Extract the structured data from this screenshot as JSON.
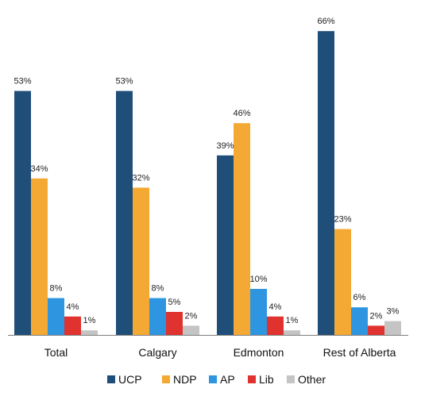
{
  "chart_data": {
    "type": "bar",
    "categories": [
      "Total",
      "Calgary",
      "Edmonton",
      "Rest of Alberta"
    ],
    "series": [
      {
        "name": "UCP",
        "values": [
          53,
          53,
          39,
          66
        ],
        "labels": [
          "53%",
          "53%",
          "39%",
          "66%"
        ],
        "color": "#1f4e79"
      },
      {
        "name": "NDP",
        "values": [
          34,
          32,
          46,
          23
        ],
        "labels": [
          "34%",
          "32%",
          "46%",
          "23%"
        ],
        "color": "#f4a934"
      },
      {
        "name": "AP",
        "values": [
          8,
          8,
          10,
          6
        ],
        "labels": [
          "8%",
          "8%",
          "10%",
          "6%"
        ],
        "color": "#2e95e0"
      },
      {
        "name": "Lib",
        "values": [
          4,
          5,
          4,
          2
        ],
        "labels": [
          "4%",
          "5%",
          "4%",
          "2%"
        ],
        "color": "#e0322f"
      },
      {
        "name": "Other",
        "values": [
          1,
          2,
          1,
          3
        ],
        "labels": [
          "1%",
          "2%",
          "1%",
          "3%"
        ],
        "color": "#c4c4c4"
      }
    ],
    "title": "",
    "xlabel": "",
    "ylabel": "",
    "ylim": [
      0,
      70
    ],
    "grid": false,
    "legend_position": "bottom"
  }
}
